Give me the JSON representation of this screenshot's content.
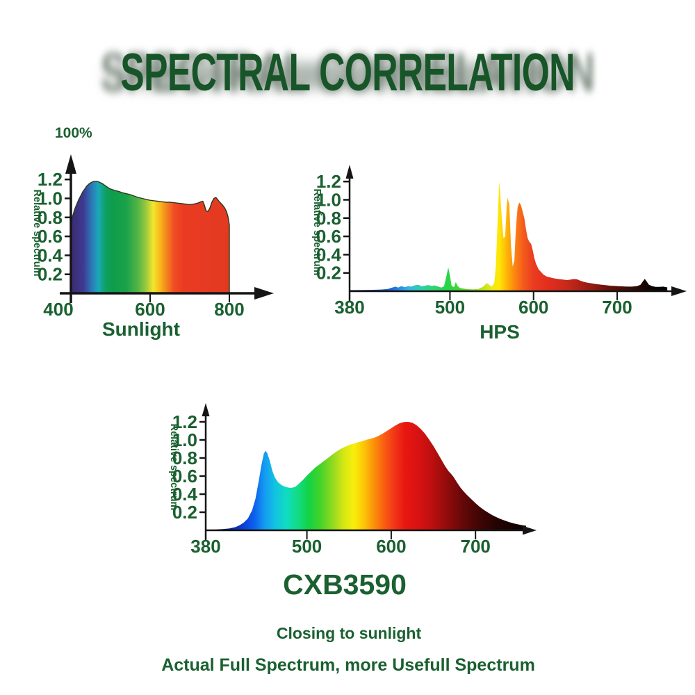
{
  "header": {
    "title": "SPECTRAL CORRELATION"
  },
  "annotations": {
    "percent_label": "100%"
  },
  "style": {
    "background": "#ffffff",
    "text_color": "#1a6030",
    "title_color": "#175529",
    "axis_color": "#151515"
  },
  "footer": {
    "line1": "Closing to sunlight",
    "line2": "Actual Full Spectrum, more Usefull Spectrum"
  },
  "chart_data": [
    {
      "name": "sunlight",
      "type": "area",
      "title": "Sunlight",
      "ylabel": "Relative spectrum",
      "x_range": [
        400,
        800
      ],
      "x_ticks": [
        400,
        600,
        800
      ],
      "y_ticks": [
        0.2,
        0.4,
        0.6,
        0.8,
        1.0,
        1.2
      ],
      "ylim": [
        0,
        1.3
      ],
      "outline": "#2a3a1e",
      "points": [
        [
          400,
          0.74
        ],
        [
          405,
          0.82
        ],
        [
          410,
          0.89
        ],
        [
          415,
          0.94
        ],
        [
          420,
          0.99
        ],
        [
          425,
          1.03
        ],
        [
          430,
          1.07
        ],
        [
          435,
          1.1
        ],
        [
          440,
          1.13
        ],
        [
          445,
          1.15
        ],
        [
          450,
          1.165
        ],
        [
          455,
          1.175
        ],
        [
          460,
          1.18
        ],
        [
          465,
          1.18
        ],
        [
          470,
          1.175
        ],
        [
          475,
          1.165
        ],
        [
          480,
          1.155
        ],
        [
          485,
          1.14
        ],
        [
          490,
          1.125
        ],
        [
          495,
          1.11
        ],
        [
          500,
          1.1
        ],
        [
          510,
          1.085
        ],
        [
          520,
          1.075
        ],
        [
          530,
          1.06
        ],
        [
          540,
          1.05
        ],
        [
          550,
          1.04
        ],
        [
          560,
          1.025
        ],
        [
          570,
          1.01
        ],
        [
          580,
          1.0
        ],
        [
          590,
          0.99
        ],
        [
          600,
          0.98
        ],
        [
          610,
          0.975
        ],
        [
          620,
          0.97
        ],
        [
          630,
          0.965
        ],
        [
          640,
          0.96
        ],
        [
          650,
          0.96
        ],
        [
          660,
          0.955
        ],
        [
          670,
          0.95
        ],
        [
          680,
          0.945
        ],
        [
          690,
          0.94
        ],
        [
          700,
          0.935
        ],
        [
          710,
          0.94
        ],
        [
          720,
          0.95
        ],
        [
          728,
          0.965
        ],
        [
          733,
          0.97
        ],
        [
          737,
          0.93
        ],
        [
          741,
          0.87
        ],
        [
          746,
          0.862
        ],
        [
          751,
          0.9
        ],
        [
          756,
          0.96
        ],
        [
          761,
          1.0
        ],
        [
          766,
          1.01
        ],
        [
          771,
          0.985
        ],
        [
          776,
          0.96
        ],
        [
          782,
          0.935
        ],
        [
          788,
          0.9
        ],
        [
          793,
          0.86
        ],
        [
          797,
          0.8
        ],
        [
          800,
          0.72
        ]
      ],
      "gradient": [
        [
          400,
          "#3b2a70"
        ],
        [
          432,
          "#3f3a92"
        ],
        [
          452,
          "#2d77b7"
        ],
        [
          470,
          "#18aab6"
        ],
        [
          488,
          "#0f9f63"
        ],
        [
          505,
          "#0d9d4b"
        ],
        [
          540,
          "#1ba24a"
        ],
        [
          570,
          "#55b545"
        ],
        [
          590,
          "#9cc93c"
        ],
        [
          608,
          "#f2e72e"
        ],
        [
          625,
          "#f8b81b"
        ],
        [
          643,
          "#f4801f"
        ],
        [
          660,
          "#ef4d23"
        ],
        [
          685,
          "#ea3b22"
        ],
        [
          800,
          "#e23a21"
        ]
      ]
    },
    {
      "name": "hps",
      "type": "area",
      "title": "HPS",
      "ylabel": "Relative spectrum",
      "x_range": [
        380,
        760
      ],
      "x_ticks": [
        380,
        500,
        600,
        700
      ],
      "y_ticks": [
        0.2,
        0.4,
        0.6,
        0.8,
        1.0,
        1.2
      ],
      "ylim": [
        0,
        1.3
      ],
      "outline": null,
      "points": [
        [
          380,
          0.012
        ],
        [
          395,
          0.013
        ],
        [
          408,
          0.015
        ],
        [
          418,
          0.018
        ],
        [
          426,
          0.025
        ],
        [
          431,
          0.04
        ],
        [
          435,
          0.05
        ],
        [
          438,
          0.04
        ],
        [
          442,
          0.055
        ],
        [
          446,
          0.045
        ],
        [
          450,
          0.055
        ],
        [
          454,
          0.05
        ],
        [
          458,
          0.065
        ],
        [
          462,
          0.07
        ],
        [
          466,
          0.055
        ],
        [
          470,
          0.06
        ],
        [
          474,
          0.068
        ],
        [
          478,
          0.058
        ],
        [
          482,
          0.062
        ],
        [
          486,
          0.05
        ],
        [
          490,
          0.04
        ],
        [
          493,
          0.055
        ],
        [
          496,
          0.17
        ],
        [
          498,
          0.26
        ],
        [
          500,
          0.17
        ],
        [
          502,
          0.06
        ],
        [
          505,
          0.045
        ],
        [
          507,
          0.1
        ],
        [
          509,
          0.06
        ],
        [
          512,
          0.035
        ],
        [
          516,
          0.028
        ],
        [
          522,
          0.022
        ],
        [
          528,
          0.02
        ],
        [
          534,
          0.025
        ],
        [
          540,
          0.05
        ],
        [
          544,
          0.09
        ],
        [
          547,
          0.07
        ],
        [
          550,
          0.05
        ],
        [
          553,
          0.09
        ],
        [
          555,
          0.28
        ],
        [
          557,
          0.75
        ],
        [
          559,
          1.2
        ],
        [
          560,
          1.1
        ],
        [
          562,
          0.8
        ],
        [
          564,
          0.58
        ],
        [
          566,
          0.6
        ],
        [
          568,
          0.95
        ],
        [
          569,
          1.02
        ],
        [
          571,
          0.95
        ],
        [
          573,
          0.5
        ],
        [
          575,
          0.27
        ],
        [
          577,
          0.33
        ],
        [
          579,
          0.7
        ],
        [
          581,
          0.92
        ],
        [
          583,
          0.97
        ],
        [
          585,
          0.94
        ],
        [
          587,
          0.87
        ],
        [
          589,
          0.8
        ],
        [
          591,
          0.68
        ],
        [
          593,
          0.58
        ],
        [
          595,
          0.54
        ],
        [
          597,
          0.52
        ],
        [
          599,
          0.45
        ],
        [
          601,
          0.36
        ],
        [
          603,
          0.3
        ],
        [
          606,
          0.24
        ],
        [
          609,
          0.21
        ],
        [
          612,
          0.18
        ],
        [
          616,
          0.16
        ],
        [
          620,
          0.15
        ],
        [
          625,
          0.14
        ],
        [
          630,
          0.133
        ],
        [
          635,
          0.127
        ],
        [
          640,
          0.122
        ],
        [
          644,
          0.126
        ],
        [
          648,
          0.133
        ],
        [
          652,
          0.13
        ],
        [
          656,
          0.115
        ],
        [
          660,
          0.103
        ],
        [
          665,
          0.092
        ],
        [
          670,
          0.085
        ],
        [
          675,
          0.078
        ],
        [
          680,
          0.072
        ],
        [
          686,
          0.066
        ],
        [
          692,
          0.06
        ],
        [
          698,
          0.057
        ],
        [
          705,
          0.053
        ],
        [
          712,
          0.05
        ],
        [
          718,
          0.05
        ],
        [
          724,
          0.056
        ],
        [
          728,
          0.07
        ],
        [
          731,
          0.11
        ],
        [
          733,
          0.135
        ],
        [
          735,
          0.11
        ],
        [
          738,
          0.07
        ],
        [
          742,
          0.055
        ],
        [
          746,
          0.048
        ],
        [
          751,
          0.047
        ],
        [
          755,
          0.05
        ],
        [
          760,
          0.042
        ]
      ],
      "gradient": [
        [
          380,
          "#141c8f"
        ],
        [
          430,
          "#2063dd"
        ],
        [
          450,
          "#35b3e5"
        ],
        [
          466,
          "#2fd0a8"
        ],
        [
          482,
          "#2ed36e"
        ],
        [
          497,
          "#25d647"
        ],
        [
          515,
          "#4fd42a"
        ],
        [
          535,
          "#a8e122"
        ],
        [
          551,
          "#f0e914"
        ],
        [
          559,
          "#ffe606"
        ],
        [
          568,
          "#fdb607"
        ],
        [
          578,
          "#fb8312"
        ],
        [
          588,
          "#f35b1d"
        ],
        [
          600,
          "#ea3b20"
        ],
        [
          618,
          "#e32d1e"
        ],
        [
          640,
          "#c62a1a"
        ],
        [
          665,
          "#9c1d14"
        ],
        [
          690,
          "#64120b"
        ],
        [
          715,
          "#370d06"
        ],
        [
          740,
          "#0d0302"
        ],
        [
          760,
          "#050101"
        ]
      ]
    },
    {
      "name": "cxb3590",
      "type": "area",
      "title": "CXB3590",
      "ylabel": "Relative spectrum",
      "x_range": [
        380,
        760
      ],
      "x_ticks": [
        380,
        500,
        600,
        700
      ],
      "y_ticks": [
        0.2,
        0.4,
        0.6,
        0.8,
        1.0,
        1.2
      ],
      "ylim": [
        0,
        1.3
      ],
      "outline": null,
      "points": [
        [
          380,
          0.005
        ],
        [
          390,
          0.008
        ],
        [
          400,
          0.013
        ],
        [
          408,
          0.02
        ],
        [
          415,
          0.035
        ],
        [
          420,
          0.055
        ],
        [
          425,
          0.085
        ],
        [
          430,
          0.13
        ],
        [
          435,
          0.22
        ],
        [
          439,
          0.35
        ],
        [
          443,
          0.55
        ],
        [
          446,
          0.72
        ],
        [
          449,
          0.85
        ],
        [
          451,
          0.88
        ],
        [
          453,
          0.855
        ],
        [
          456,
          0.77
        ],
        [
          459,
          0.66
        ],
        [
          462,
          0.585
        ],
        [
          466,
          0.53
        ],
        [
          470,
          0.5
        ],
        [
          474,
          0.482
        ],
        [
          478,
          0.472
        ],
        [
          482,
          0.47
        ],
        [
          486,
          0.48
        ],
        [
          490,
          0.51
        ],
        [
          495,
          0.555
        ],
        [
          500,
          0.605
        ],
        [
          505,
          0.65
        ],
        [
          510,
          0.695
        ],
        [
          515,
          0.73
        ],
        [
          520,
          0.765
        ],
        [
          525,
          0.8
        ],
        [
          530,
          0.838
        ],
        [
          535,
          0.87
        ],
        [
          540,
          0.9
        ],
        [
          545,
          0.923
        ],
        [
          550,
          0.943
        ],
        [
          555,
          0.958
        ],
        [
          560,
          0.972
        ],
        [
          565,
          0.985
        ],
        [
          570,
          1.0
        ],
        [
          575,
          1.012
        ],
        [
          580,
          1.025
        ],
        [
          585,
          1.045
        ],
        [
          590,
          1.07
        ],
        [
          595,
          1.1
        ],
        [
          600,
          1.13
        ],
        [
          605,
          1.16
        ],
        [
          610,
          1.185
        ],
        [
          615,
          1.198
        ],
        [
          620,
          1.2
        ],
        [
          625,
          1.19
        ],
        [
          630,
          1.163
        ],
        [
          635,
          1.122
        ],
        [
          640,
          1.07
        ],
        [
          645,
          1.005
        ],
        [
          650,
          0.935
        ],
        [
          655,
          0.855
        ],
        [
          660,
          0.775
        ],
        [
          664,
          0.71
        ],
        [
          668,
          0.655
        ],
        [
          671,
          0.625
        ],
        [
          674,
          0.59
        ],
        [
          678,
          0.53
        ],
        [
          682,
          0.475
        ],
        [
          686,
          0.43
        ],
        [
          690,
          0.39
        ],
        [
          695,
          0.345
        ],
        [
          700,
          0.3
        ],
        [
          705,
          0.26
        ],
        [
          710,
          0.225
        ],
        [
          715,
          0.195
        ],
        [
          720,
          0.168
        ],
        [
          725,
          0.144
        ],
        [
          730,
          0.124
        ],
        [
          735,
          0.107
        ],
        [
          740,
          0.091
        ],
        [
          745,
          0.077
        ],
        [
          750,
          0.066
        ],
        [
          755,
          0.057
        ],
        [
          760,
          0.05
        ]
      ],
      "gradient": [
        [
          380,
          "#050a28"
        ],
        [
          408,
          "#08218a"
        ],
        [
          424,
          "#0b3cd4"
        ],
        [
          438,
          "#0e62ee"
        ],
        [
          450,
          "#159bf2"
        ],
        [
          462,
          "#12c2e2"
        ],
        [
          476,
          "#10dcc0"
        ],
        [
          490,
          "#12dc80"
        ],
        [
          502,
          "#14d246"
        ],
        [
          516,
          "#43d328"
        ],
        [
          530,
          "#8ed921"
        ],
        [
          544,
          "#d6e714"
        ],
        [
          556,
          "#f8ee0c"
        ],
        [
          568,
          "#fcc407"
        ],
        [
          580,
          "#fb8f0a"
        ],
        [
          592,
          "#f85c12"
        ],
        [
          604,
          "#f23618"
        ],
        [
          616,
          "#e81711"
        ],
        [
          634,
          "#d61212"
        ],
        [
          650,
          "#b90f0f"
        ],
        [
          668,
          "#8d0b0b"
        ],
        [
          686,
          "#630808"
        ],
        [
          705,
          "#400505"
        ],
        [
          725,
          "#250303"
        ],
        [
          760,
          "#0a0101"
        ]
      ]
    }
  ]
}
